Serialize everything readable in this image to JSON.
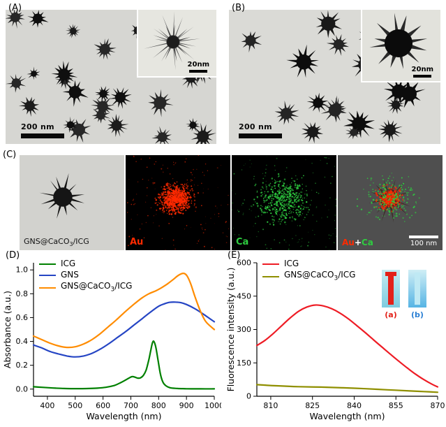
{
  "panels": {
    "a": {
      "letter": "(A)",
      "scalebar": "200 nm",
      "inset_scalebar": "20nm"
    },
    "b": {
      "letter": "(B)",
      "scalebar": "200 nm",
      "inset_scalebar": "20nm"
    },
    "c": {
      "letter": "(C)",
      "tem_label_parts": [
        "GNS@CaCO",
        "3",
        "/ICG"
      ],
      "au_label": "Au",
      "ca_label": "Ca",
      "overlay_label_parts": [
        "Au",
        "+",
        "Ca"
      ],
      "scalebar": "100 nm",
      "au_color": "#ff2a00",
      "ca_color": "#2ecc40"
    },
    "d": {
      "letter": "(D)"
    },
    "e": {
      "letter": "(E)",
      "inset": {
        "a_label": "(a)",
        "b_label": "(b)"
      }
    }
  },
  "chart_data": [
    {
      "id": "absorbance-chart",
      "type": "line",
      "title": "",
      "xlabel": "Wavelength (nm)",
      "ylabel": "Absorbance (a.u.)",
      "xlim": [
        350,
        1000
      ],
      "ylim": [
        -0.06,
        1.06
      ],
      "xticks": [
        400,
        500,
        600,
        700,
        800,
        900,
        1000
      ],
      "xtick_labels": [
        "400",
        "500",
        "600",
        "700",
        "800",
        "900",
        "1000"
      ],
      "yticks": [
        0.0,
        0.2,
        0.4,
        0.6,
        0.8,
        1.0
      ],
      "ytick_labels": [
        "0.0",
        "0.2",
        "0.4",
        "0.6",
        "0.8",
        "1.0"
      ],
      "grid": false,
      "legend_position": "top-left",
      "series": [
        {
          "name": "ICG",
          "name_parts": [
            {
              "t": "ICG"
            }
          ],
          "color": "#008000",
          "x": [
            350,
            380,
            400,
            430,
            460,
            490,
            520,
            550,
            580,
            610,
            640,
            660,
            680,
            695,
            705,
            715,
            725,
            735,
            745,
            755,
            765,
            772,
            778,
            783,
            790,
            798,
            806,
            815,
            825,
            840,
            860,
            900,
            950,
            1000
          ],
          "y": [
            0.02,
            0.015,
            0.012,
            0.008,
            0.005,
            0.004,
            0.004,
            0.005,
            0.008,
            0.015,
            0.03,
            0.05,
            0.075,
            0.095,
            0.105,
            0.1,
            0.092,
            0.095,
            0.115,
            0.16,
            0.25,
            0.33,
            0.39,
            0.4,
            0.35,
            0.24,
            0.13,
            0.06,
            0.03,
            0.012,
            0.006,
            0.003,
            0.002,
            0.002
          ]
        },
        {
          "name": "GNS",
          "name_parts": [
            {
              "t": "GNS"
            }
          ],
          "color": "#2545c4",
          "x": [
            350,
            380,
            410,
            440,
            470,
            500,
            530,
            560,
            590,
            620,
            650,
            680,
            710,
            740,
            770,
            800,
            820,
            840,
            860,
            880,
            900,
            930,
            960,
            1000
          ],
          "y": [
            0.37,
            0.345,
            0.315,
            0.295,
            0.278,
            0.27,
            0.278,
            0.3,
            0.335,
            0.38,
            0.43,
            0.48,
            0.535,
            0.59,
            0.645,
            0.695,
            0.715,
            0.728,
            0.73,
            0.725,
            0.71,
            0.675,
            0.63,
            0.565
          ]
        },
        {
          "name": "GNS@CaCO3/ICG",
          "name_parts": [
            {
              "t": "GNS@CaCO"
            },
            {
              "t": "3",
              "sub": true
            },
            {
              "t": "/ICG"
            }
          ],
          "color": "#ff8c00",
          "x": [
            350,
            380,
            410,
            440,
            470,
            500,
            530,
            560,
            590,
            620,
            650,
            680,
            710,
            740,
            765,
            790,
            810,
            830,
            850,
            868,
            882,
            892,
            902,
            915,
            930,
            950,
            970,
            1000
          ],
          "y": [
            0.445,
            0.415,
            0.385,
            0.362,
            0.35,
            0.355,
            0.378,
            0.415,
            0.465,
            0.525,
            0.585,
            0.65,
            0.71,
            0.765,
            0.8,
            0.825,
            0.85,
            0.88,
            0.915,
            0.95,
            0.968,
            0.97,
            0.95,
            0.885,
            0.78,
            0.655,
            0.565,
            0.5
          ]
        }
      ]
    },
    {
      "id": "fluorescence-chart",
      "type": "line",
      "title": "",
      "xlabel": "Wavelength (nm)",
      "ylabel": "Fluorescence intensity (a.u.)",
      "xlim": [
        805,
        870
      ],
      "ylim": [
        0,
        600
      ],
      "xticks": [
        810,
        825,
        840,
        855,
        870
      ],
      "xtick_labels": [
        "810",
        "825",
        "840",
        "855",
        "870"
      ],
      "yticks": [
        0,
        150,
        300,
        450,
        600
      ],
      "ytick_labels": [
        "0",
        "150",
        "300",
        "450",
        "600"
      ],
      "grid": false,
      "legend_position": "top-left",
      "series": [
        {
          "name": "ICG",
          "name_parts": [
            {
              "t": "ICG"
            }
          ],
          "color": "#ee1c25",
          "x": [
            805,
            808,
            811,
            814,
            817,
            820,
            823,
            826,
            829,
            832,
            835,
            838,
            841,
            844,
            847,
            850,
            853,
            856,
            859,
            862,
            865,
            868,
            870
          ],
          "y": [
            228,
            252,
            283,
            318,
            352,
            382,
            401,
            410,
            406,
            393,
            373,
            347,
            317,
            286,
            253,
            221,
            189,
            158,
            128,
            100,
            75,
            54,
            42
          ]
        },
        {
          "name": "GNS@CaCO3/ICG",
          "name_parts": [
            {
              "t": "GNS@CaCO"
            },
            {
              "t": "3",
              "sub": true
            },
            {
              "t": "/ICG"
            }
          ],
          "color": "#8f8f00",
          "x": [
            805,
            812,
            820,
            828,
            836,
            844,
            852,
            860,
            865,
            870
          ],
          "y": [
            52,
            47,
            43,
            41,
            38,
            34,
            29,
            24,
            21,
            18
          ]
        }
      ]
    }
  ]
}
